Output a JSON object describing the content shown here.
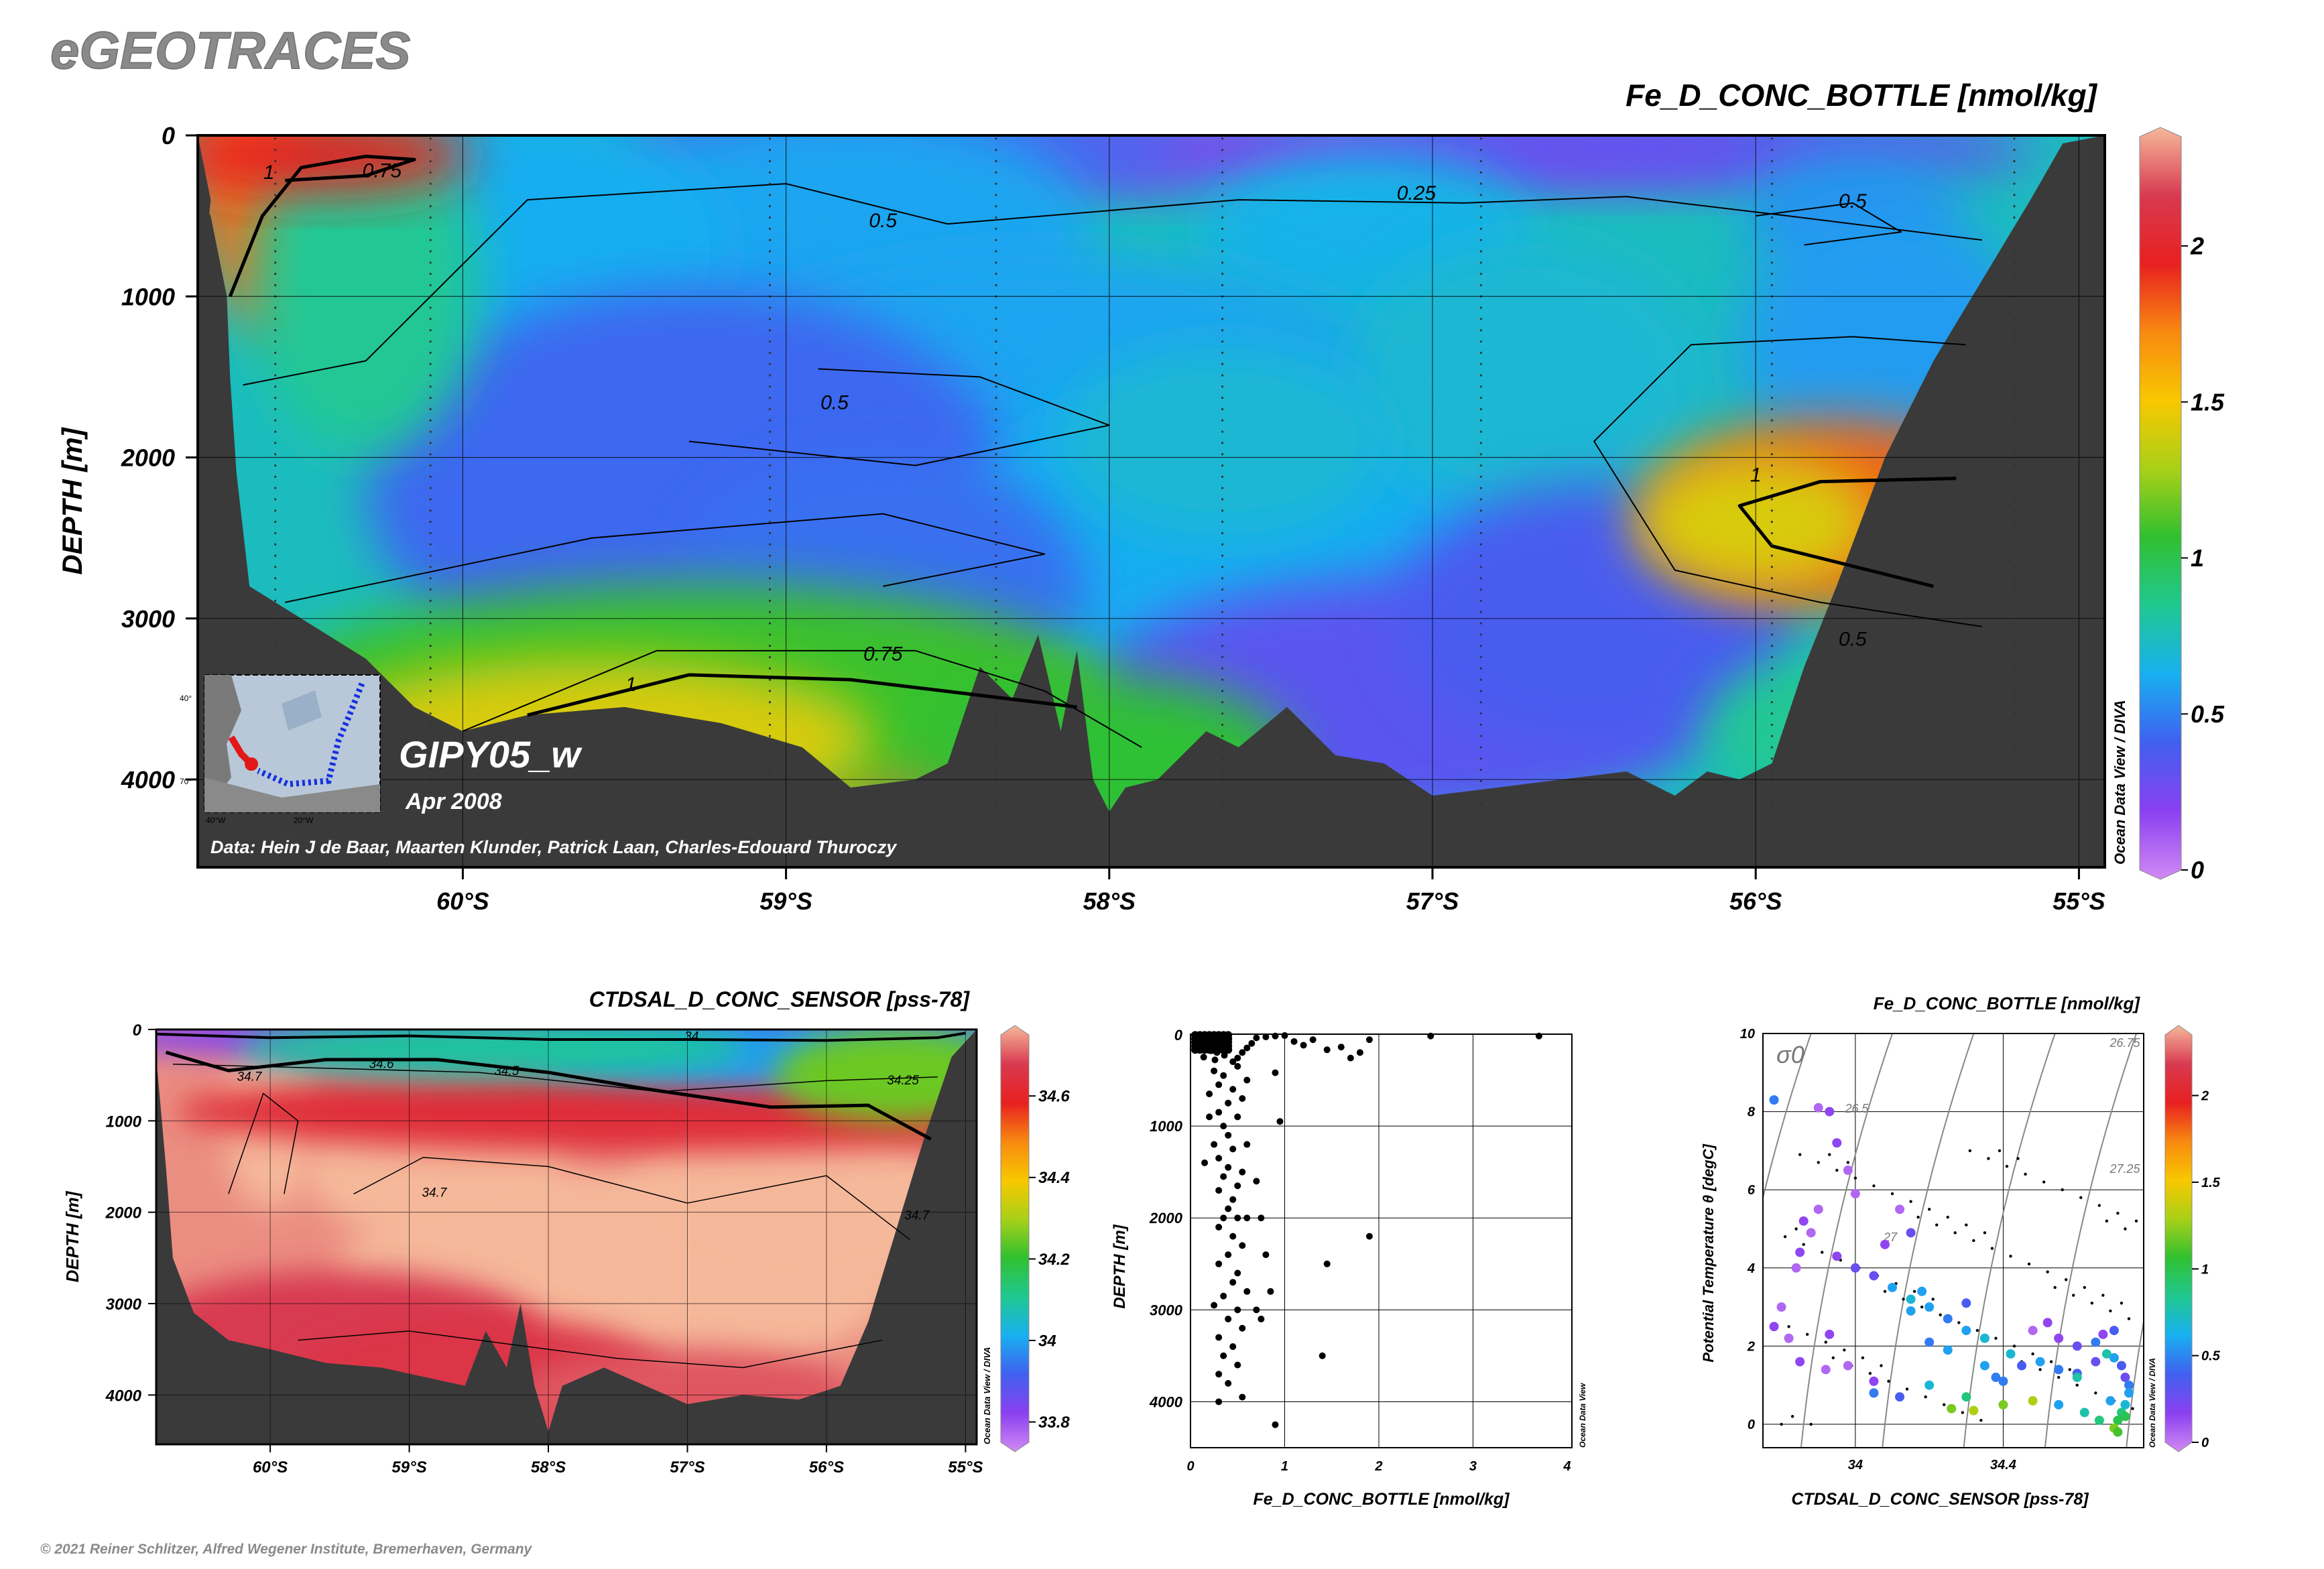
{
  "brand": "eGEOTRACES",
  "copyright": "© 2021 Reiner Schlitzer, Alfred Wegener Institute, Bremerhaven, Germany",
  "odv_credit": "Ocean Data View / DIVA",
  "odv_credit_short": "Ocean Data View",
  "colors": {
    "land": "#3a3a3a",
    "brand_text": "#8a8a8a",
    "inset_track": "#1530e0",
    "inset_highlight": "#e01818"
  },
  "palette": [
    "#d28af4",
    "#8a40f0",
    "#4060f0",
    "#18b0f0",
    "#20c890",
    "#30c030",
    "#a8d018",
    "#f8c800",
    "#f88a10",
    "#e82020",
    "#d83a50",
    "#f5b89a"
  ],
  "chart_data": [
    {
      "type": "heatmap",
      "name": "main-section",
      "title": "Fe_D_CONC_BOTTLE [nmol/kg]",
      "ylabel": "DEPTH [m]",
      "x_ticks": [
        "60°S",
        "59°S",
        "58°S",
        "57°S",
        "56°S",
        "55°S"
      ],
      "x_tick_values": [
        -60,
        -59,
        -58,
        -57,
        -56,
        -55
      ],
      "xlim": [
        -60.82,
        -54.92
      ],
      "y_ticks": [
        "0",
        "1000",
        "2000",
        "3000",
        "4000"
      ],
      "y_tick_values": [
        0,
        1000,
        2000,
        3000,
        4000
      ],
      "ylim": [
        0,
        4500
      ],
      "colorbar": {
        "range": [
          0,
          2.35
        ],
        "ticks": [
          "0",
          "0.5",
          "1",
          "1.5",
          "2"
        ],
        "tick_values": [
          0,
          0.5,
          1,
          1.5,
          2
        ]
      },
      "contour_labels": [
        {
          "text": "1",
          "lat": -60.6,
          "depth": 270
        },
        {
          "text": "0.75",
          "lat": -60.25,
          "depth": 260
        },
        {
          "text": "0.5",
          "lat": -58.7,
          "depth": 570
        },
        {
          "text": "0.25",
          "lat": -57.05,
          "depth": 400
        },
        {
          "text": "0.5",
          "lat": -55.7,
          "depth": 450
        },
        {
          "text": "0.5",
          "lat": -58.85,
          "depth": 1700
        },
        {
          "text": "1",
          "lat": -56.0,
          "depth": 2150
        },
        {
          "text": "0.5",
          "lat": -55.7,
          "depth": 3170
        },
        {
          "text": "0.75",
          "lat": -58.7,
          "depth": 3260
        },
        {
          "text": "1",
          "lat": -59.48,
          "depth": 3450
        }
      ],
      "annotations": {
        "section_name": "GIPY05_w",
        "date": "Apr 2008",
        "data_credit": "Data: Hein J de Baar, Maarten Klunder, Patrick Laan, Charles-Edouard Thuroczy"
      },
      "stations_lat": [
        -60.58,
        -60.1,
        -59.05,
        -58.35,
        -57.65,
        -56.85,
        -55.95,
        -55.2
      ],
      "inset_map": {
        "lat_labels": [
          "40°",
          "70°"
        ],
        "lon_labels": [
          "40°W",
          "20°W"
        ]
      }
    },
    {
      "type": "heatmap",
      "name": "salinity-section",
      "title": "CTDSAL_D_CONC_SENSOR [pss-78]",
      "ylabel": "DEPTH [m]",
      "x_ticks": [
        "60°S",
        "59°S",
        "58°S",
        "57°S",
        "56°S",
        "55°S"
      ],
      "x_tick_values": [
        -60,
        -59,
        -58,
        -57,
        -56,
        -55
      ],
      "xlim": [
        -60.82,
        -54.92
      ],
      "y_ticks": [
        "0",
        "1000",
        "2000",
        "3000",
        "4000"
      ],
      "y_tick_values": [
        0,
        1000,
        2000,
        3000,
        4000
      ],
      "ylim": [
        0,
        4500
      ],
      "colorbar": {
        "range": [
          33.75,
          34.75
        ],
        "ticks": [
          "33.8",
          "34",
          "34.2",
          "34.4",
          "34.6"
        ],
        "tick_values": [
          33.8,
          34,
          34.2,
          34.4,
          34.6
        ]
      },
      "contour_labels": [
        {
          "text": "34",
          "lat": -56.97,
          "depth": 120
        },
        {
          "text": "34.6",
          "lat": -59.2,
          "depth": 420
        },
        {
          "text": "34.5",
          "lat": -58.3,
          "depth": 500
        },
        {
          "text": "34.25",
          "lat": -55.45,
          "depth": 600
        },
        {
          "text": "34.7",
          "lat": -60.15,
          "depth": 560
        },
        {
          "text": "34.7",
          "lat": -58.82,
          "depth": 1830
        },
        {
          "text": "34.7",
          "lat": -55.35,
          "depth": 2080
        }
      ]
    },
    {
      "type": "scatter",
      "name": "fe-depth-profile",
      "xlabel": "Fe_D_CONC_BOTTLE [nmol/kg]",
      "ylabel": "DEPTH [m]",
      "x_ticks": [
        "0",
        "1",
        "2",
        "3",
        "4"
      ],
      "xlim": [
        0,
        4
      ],
      "y_ticks": [
        "1000",
        "2000",
        "3000",
        "4000"
      ],
      "y_tick_values": [
        1000,
        2000,
        3000,
        4000
      ],
      "ylim": [
        0,
        4500
      ],
      "points": [
        [
          0.1,
          20
        ],
        [
          0.15,
          40
        ],
        [
          0.2,
          60
        ],
        [
          0.25,
          30
        ],
        [
          0.3,
          80
        ],
        [
          0.35,
          50
        ],
        [
          0.4,
          100
        ],
        [
          0.12,
          120
        ],
        [
          0.18,
          150
        ],
        [
          0.22,
          180
        ],
        [
          0.28,
          200
        ],
        [
          0.32,
          160
        ],
        [
          0.14,
          250
        ],
        [
          0.26,
          280
        ],
        [
          0.36,
          230
        ],
        [
          0.45,
          300
        ],
        [
          0.5,
          260
        ],
        [
          0.55,
          200
        ],
        [
          0.6,
          150
        ],
        [
          0.65,
          100
        ],
        [
          0.7,
          40
        ],
        [
          0.8,
          30
        ],
        [
          0.9,
          20
        ],
        [
          1.0,
          15
        ],
        [
          1.1,
          80
        ],
        [
          1.2,
          120
        ],
        [
          1.3,
          60
        ],
        [
          1.45,
          170
        ],
        [
          1.6,
          140
        ],
        [
          1.7,
          260
        ],
        [
          1.8,
          200
        ],
        [
          1.9,
          60
        ],
        [
          2.55,
          20
        ],
        [
          3.7,
          20
        ],
        [
          0.5,
          350
        ],
        [
          0.25,
          400
        ],
        [
          0.35,
          450
        ],
        [
          0.6,
          500
        ],
        [
          0.3,
          550
        ],
        [
          0.45,
          600
        ],
        [
          0.2,
          650
        ],
        [
          0.55,
          700
        ],
        [
          0.4,
          750
        ],
        [
          0.9,
          420
        ],
        [
          0.3,
          850
        ],
        [
          0.5,
          900
        ],
        [
          0.35,
          1000
        ],
        [
          0.95,
          950
        ],
        [
          0.4,
          1100
        ],
        [
          0.25,
          1200
        ],
        [
          0.45,
          1250
        ],
        [
          0.3,
          1350
        ],
        [
          0.4,
          1450
        ],
        [
          0.55,
          1500
        ],
        [
          0.35,
          1550
        ],
        [
          0.5,
          1650
        ],
        [
          0.3,
          1700
        ],
        [
          0.45,
          1800
        ],
        [
          0.4,
          1900
        ],
        [
          0.35,
          2000
        ],
        [
          0.5,
          2000
        ],
        [
          0.6,
          2000
        ],
        [
          0.3,
          2100
        ],
        [
          0.45,
          2200
        ],
        [
          0.75,
          2000
        ],
        [
          0.55,
          2300
        ],
        [
          0.4,
          2400
        ],
        [
          0.3,
          2500
        ],
        [
          0.5,
          2600
        ],
        [
          0.45,
          2700
        ],
        [
          0.6,
          2800
        ],
        [
          0.35,
          2850
        ],
        [
          0.25,
          2950
        ],
        [
          0.5,
          3000
        ],
        [
          0.7,
          3000
        ],
        [
          0.4,
          3100
        ],
        [
          0.55,
          3200
        ],
        [
          0.3,
          3300
        ],
        [
          0.45,
          3400
        ],
        [
          0.35,
          3500
        ],
        [
          0.5,
          3600
        ],
        [
          0.3,
          3700
        ],
        [
          0.4,
          3800
        ],
        [
          0.55,
          3950
        ],
        [
          0.3,
          4000
        ],
        [
          0.9,
          4250
        ],
        [
          0.85,
          2800
        ],
        [
          0.75,
          3100
        ],
        [
          0.8,
          2400
        ],
        [
          1.45,
          2500
        ],
        [
          1.9,
          2200
        ],
        [
          1.4,
          3500
        ],
        [
          0.2,
          900
        ],
        [
          0.15,
          1400
        ],
        [
          0.6,
          1200
        ],
        [
          0.7,
          1600
        ]
      ]
    },
    {
      "type": "scatter",
      "name": "ts-diagram",
      "title": "Fe_D_CONC_BOTTLE [nmol/kg]",
      "xlabel": "CTDSAL_D_CONC_SENSOR [pss-78]",
      "ylabel": "Potential Temperature θ [degC]",
      "x_ticks": [
        "34",
        "34.4"
      ],
      "x_tick_values": [
        34,
        34.4
      ],
      "xlim": [
        33.75,
        34.78
      ],
      "y_ticks": [
        "0",
        "2",
        "4",
        "6",
        "8",
        "10"
      ],
      "y_tick_values": [
        0,
        2,
        4,
        6,
        8,
        10
      ],
      "ylim": [
        -0.6,
        10
      ],
      "sigma_label": "σ0",
      "isopycnal_labels": [
        "26.5",
        "26.75",
        "27",
        "27.25"
      ],
      "colorbar": {
        "range": [
          0,
          2.35
        ],
        "ticks": [
          "0",
          "0.5",
          "1",
          "1.5",
          "2"
        ],
        "tick_values": [
          0,
          0.5,
          1,
          1.5,
          2
        ]
      },
      "points": [
        [
          33.78,
          8.3,
          0.5
        ],
        [
          33.9,
          8.1,
          0.1
        ],
        [
          33.93,
          8.0,
          0.2
        ],
        [
          33.95,
          7.2,
          0.2
        ],
        [
          33.98,
          6.5,
          0.1
        ],
        [
          33.9,
          5.5,
          0.1
        ],
        [
          33.86,
          5.2,
          0.2
        ],
        [
          33.88,
          4.9,
          0.1
        ],
        [
          33.85,
          4.4,
          0.2
        ],
        [
          33.84,
          4.0,
          0.1
        ],
        [
          33.8,
          3.0,
          0.1
        ],
        [
          33.78,
          2.5,
          0.2
        ],
        [
          33.82,
          2.2,
          0.1
        ],
        [
          33.85,
          1.6,
          0.2
        ],
        [
          33.98,
          1.5,
          0.1
        ],
        [
          34.05,
          1.1,
          0.2
        ],
        [
          33.95,
          4.3,
          0.2
        ],
        [
          34.0,
          4.0,
          0.3
        ],
        [
          34.05,
          3.8,
          0.3
        ],
        [
          34.1,
          3.5,
          0.6
        ],
        [
          34.15,
          3.2,
          0.7
        ],
        [
          34.2,
          3.0,
          0.6
        ],
        [
          34.25,
          2.7,
          0.5
        ],
        [
          34.3,
          2.4,
          0.6
        ],
        [
          34.35,
          2.2,
          0.7
        ],
        [
          34.42,
          1.8,
          0.7
        ],
        [
          34.5,
          1.6,
          0.6
        ],
        [
          34.55,
          1.4,
          0.5
        ],
        [
          34.6,
          1.3,
          0.4
        ],
        [
          34.65,
          1.6,
          0.3
        ],
        [
          34.68,
          1.8,
          0.8
        ],
        [
          34.7,
          1.7,
          0.6
        ],
        [
          34.72,
          1.5,
          0.4
        ],
        [
          34.73,
          1.2,
          0.3
        ],
        [
          34.74,
          1.0,
          0.5
        ],
        [
          34.74,
          0.8,
          0.6
        ],
        [
          34.73,
          0.5,
          0.7
        ],
        [
          34.72,
          0.3,
          0.9
        ],
        [
          34.71,
          0.1,
          1.0
        ],
        [
          34.7,
          -0.1,
          1.2
        ],
        [
          34.66,
          0.1,
          0.9
        ],
        [
          34.62,
          0.3,
          0.8
        ],
        [
          34.55,
          0.5,
          0.6
        ],
        [
          34.48,
          0.6,
          1.3
        ],
        [
          34.4,
          0.5,
          1.2
        ],
        [
          34.32,
          0.35,
          1.3
        ],
        [
          34.26,
          0.4,
          1.2
        ],
        [
          34.3,
          0.7,
          0.9
        ],
        [
          34.38,
          1.2,
          0.5
        ],
        [
          34.45,
          1.5,
          0.4
        ],
        [
          34.48,
          2.4,
          0.1
        ],
        [
          34.55,
          2.2,
          0.2
        ],
        [
          34.6,
          2.0,
          0.3
        ],
        [
          34.65,
          2.1,
          0.5
        ],
        [
          34.67,
          2.3,
          0.2
        ],
        [
          34.7,
          2.4,
          0.4
        ],
        [
          34.52,
          2.6,
          0.2
        ],
        [
          34.15,
          2.9,
          0.6
        ],
        [
          34.2,
          2.1,
          0.5
        ],
        [
          34.25,
          1.9,
          0.6
        ],
        [
          34.05,
          0.8,
          0.5
        ],
        [
          34.12,
          0.7,
          0.4
        ],
        [
          34.2,
          1.0,
          0.7
        ],
        [
          34.35,
          1.5,
          0.6
        ],
        [
          34.4,
          1.1,
          0.5
        ],
        [
          34.6,
          1.2,
          0.8
        ],
        [
          34.73,
          0.2,
          1.0
        ],
        [
          34.71,
          -0.2,
          1.1
        ],
        [
          34.69,
          0.6,
          0.6
        ],
        [
          34.08,
          4.6,
          0.2
        ],
        [
          34.12,
          5.5,
          0.1
        ],
        [
          34.0,
          5.9,
          0.1
        ],
        [
          34.15,
          4.9,
          0.3
        ],
        [
          34.18,
          3.4,
          0.6
        ],
        [
          34.3,
          3.1,
          0.4
        ],
        [
          33.93,
          2.3,
          0.2
        ],
        [
          33.92,
          1.4,
          0.1
        ]
      ]
    }
  ]
}
